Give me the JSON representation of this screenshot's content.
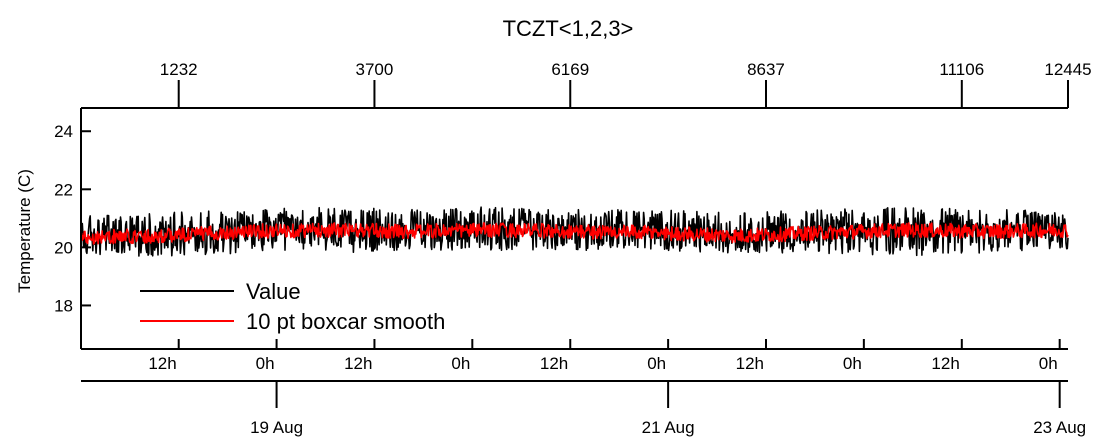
{
  "chart_data": {
    "type": "line",
    "title": "TCZT<1,2,3>",
    "ylabel": "Temperature (C)",
    "xlabel": "",
    "ylim": [
      16.5,
      24.8
    ],
    "yticks": [
      18,
      20,
      22,
      24
    ],
    "ytick_labels": [
      "18",
      "20",
      "22",
      "24"
    ],
    "grid": false,
    "legend_position": "bottom-left",
    "x_range_index": [
      0,
      12445
    ],
    "top_axis": {
      "ticks": [
        1232,
        3700,
        6169,
        8637,
        11106,
        12445
      ],
      "labels": [
        "1232",
        "3700",
        "6169",
        "8637",
        "11106",
        "12445"
      ]
    },
    "hour_axis": {
      "ticks": [
        1232,
        2466,
        3700,
        4934,
        6169,
        7403,
        8637,
        9871,
        11106,
        12340
      ],
      "labels": [
        "12h",
        "0h",
        "12h",
        "0h",
        "12h",
        "0h",
        "12h",
        "0h",
        "12h",
        "0h"
      ]
    },
    "date_axis": {
      "ticks": [
        2466,
        7403,
        12340
      ],
      "labels": [
        "19 Aug",
        "21 Aug",
        "23 Aug"
      ]
    },
    "series": [
      {
        "name": "Value",
        "color": "#000000",
        "style": "noisy",
        "band_low": [
          19.7,
          19.7,
          19.8,
          19.8,
          19.9,
          19.9,
          19.9,
          19.9,
          19.8,
          19.8,
          19.7,
          19.8,
          19.9
        ],
        "band_high": [
          21.1,
          21.2,
          21.3,
          21.4,
          21.3,
          21.4,
          21.3,
          21.3,
          21.2,
          21.3,
          21.4,
          21.3,
          21.3
        ],
        "center": [
          20.35,
          20.4,
          20.55,
          20.6,
          20.55,
          20.6,
          20.55,
          20.5,
          20.4,
          20.5,
          20.6,
          20.55,
          20.6
        ]
      },
      {
        "name": "10 pt boxcar smooth",
        "color": "#ff0000",
        "style": "smoothed",
        "center": [
          20.35,
          20.4,
          20.55,
          20.6,
          20.55,
          20.6,
          20.55,
          20.5,
          20.4,
          20.5,
          20.6,
          20.55,
          20.6
        ],
        "band_halfwidth": 0.25
      }
    ]
  }
}
